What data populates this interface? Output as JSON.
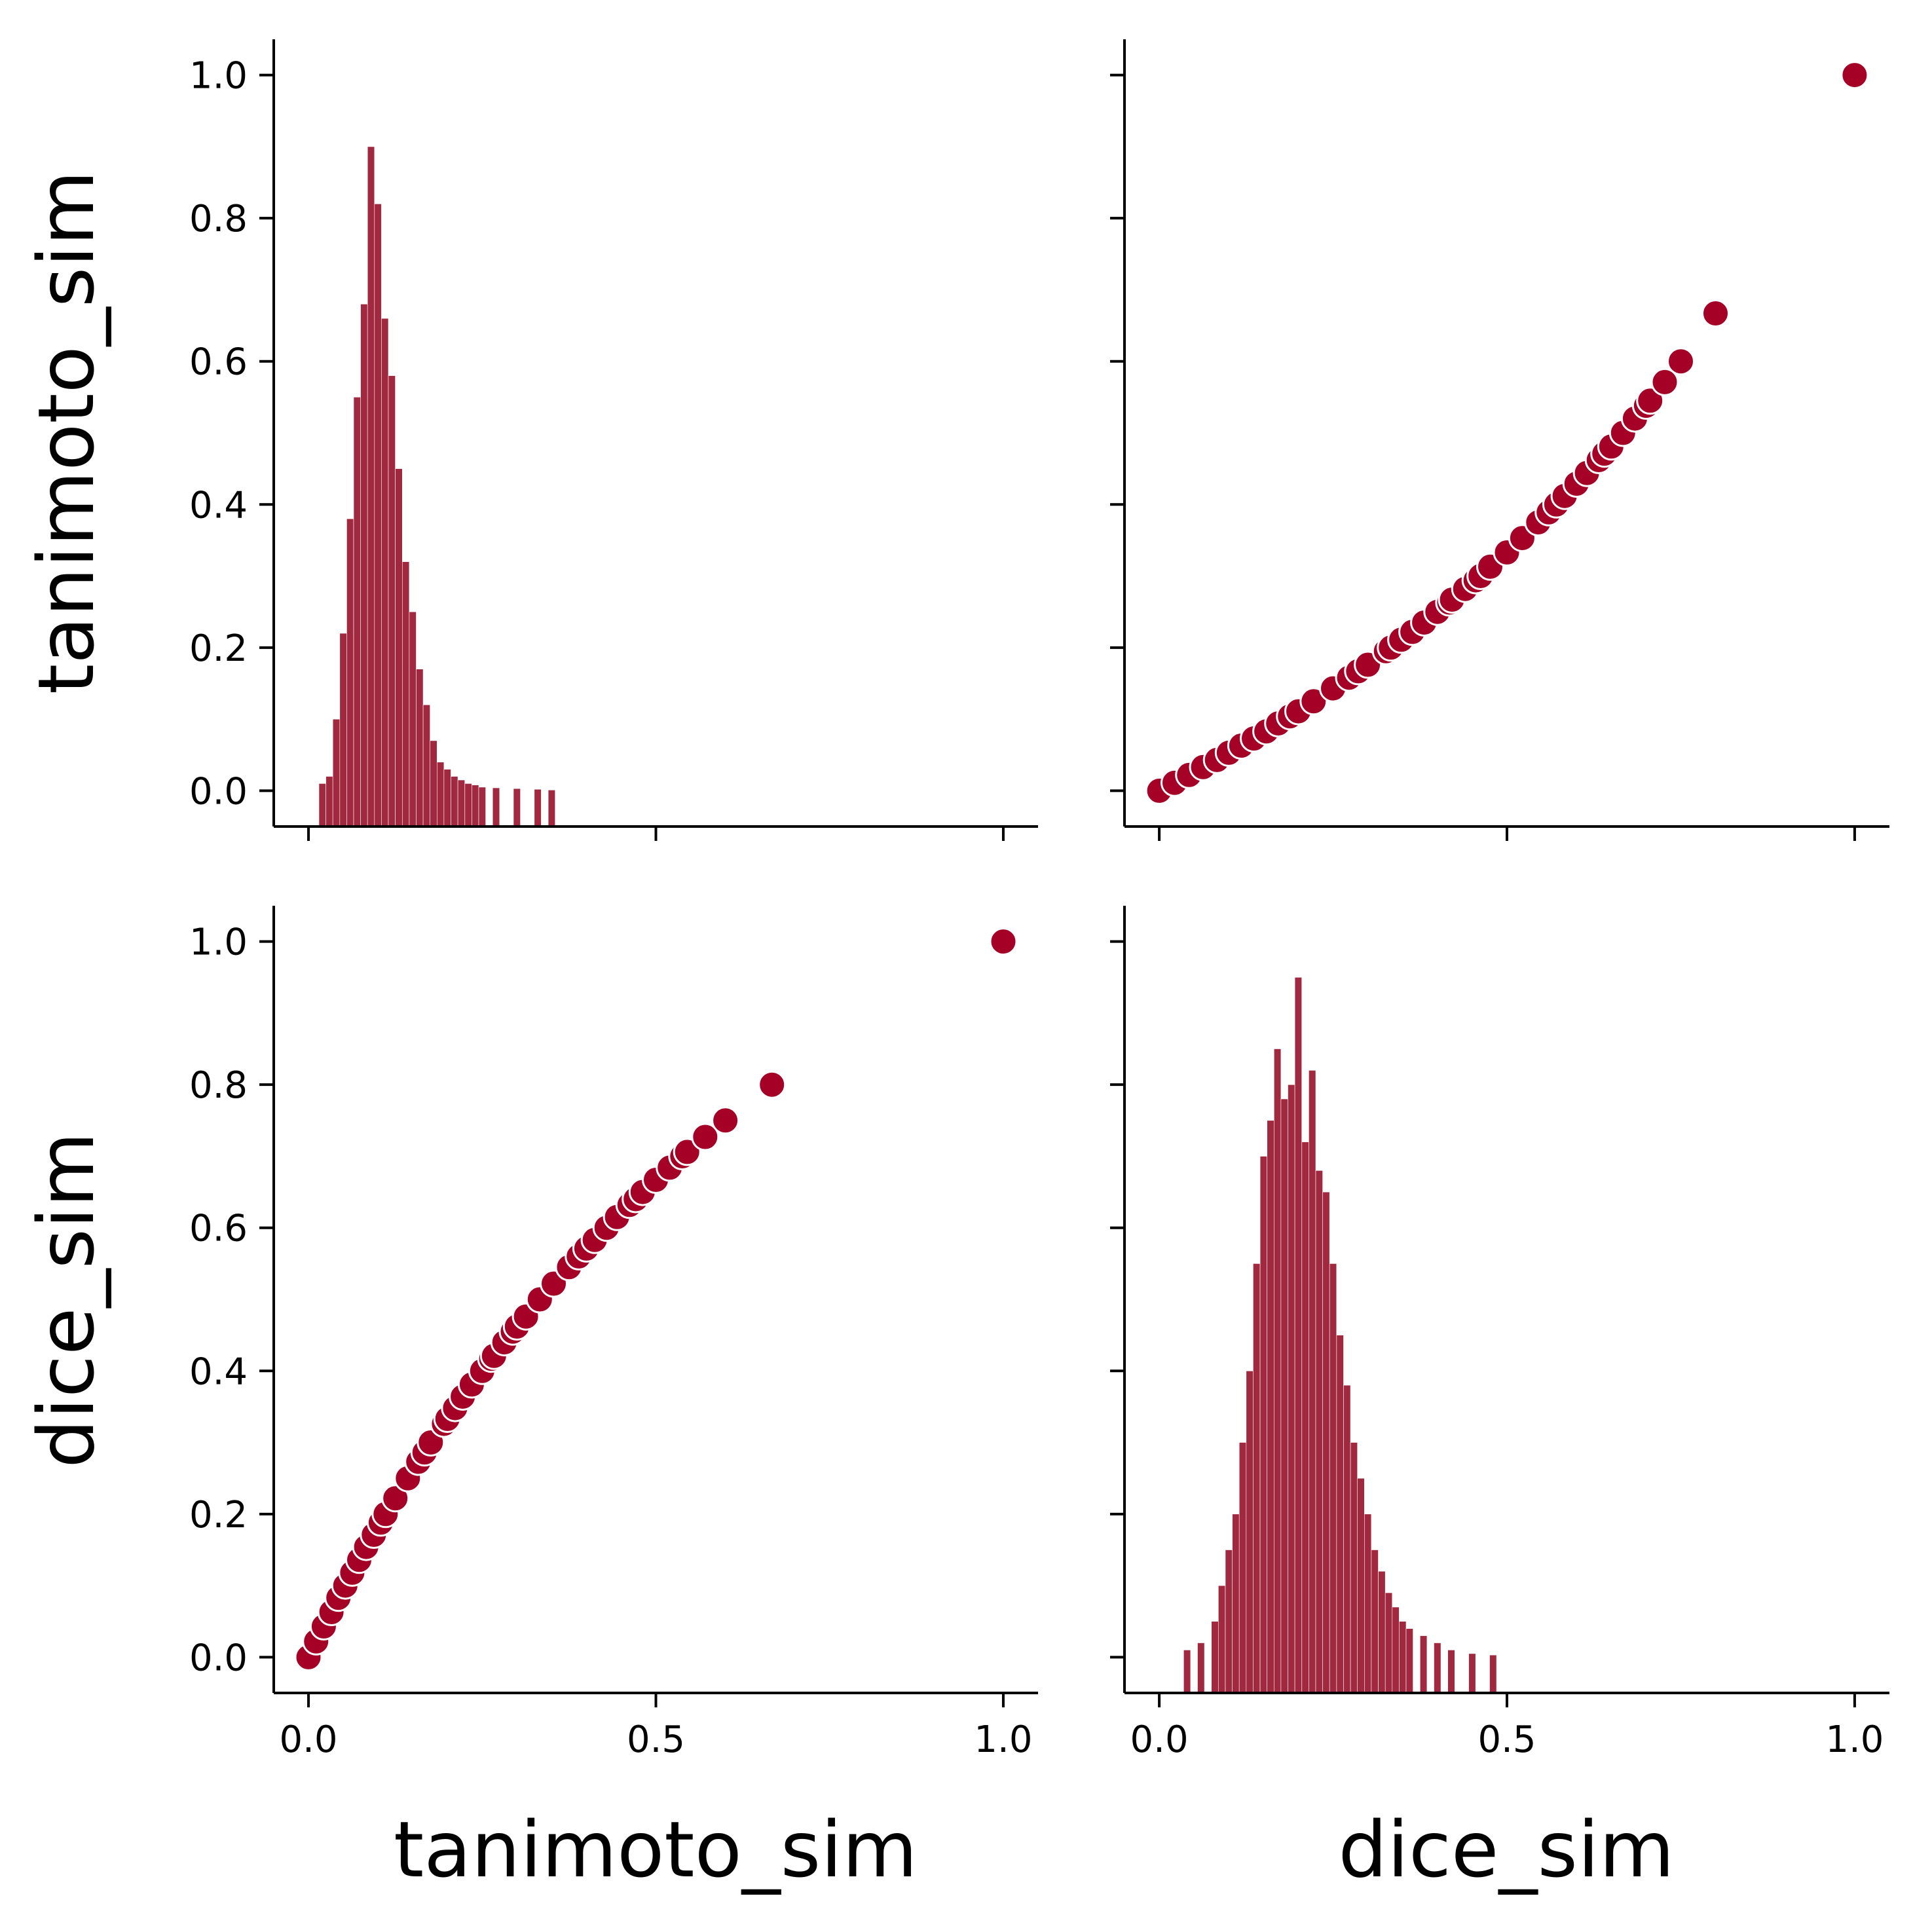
{
  "colors": {
    "mark": "#a50026",
    "hist": "#a0283f",
    "marker_edge": "#ffffff",
    "axis": "#000000"
  },
  "chart_data": {
    "type": "pairplot",
    "variables": [
      "tanimoto_sim",
      "dice_sim"
    ],
    "xlabels": [
      "tanimoto_sim",
      "dice_sim"
    ],
    "ylabels": [
      "tanimoto_sim",
      "dice_sim"
    ],
    "xlim": [
      -0.05,
      1.05
    ],
    "xticks": [
      0.0,
      0.5,
      1.0
    ],
    "xtick_labels": [
      "0.0",
      "0.5",
      "1.0"
    ],
    "ylim": [
      -0.05,
      1.05
    ],
    "yticks": [
      0.0,
      0.2,
      0.4,
      0.6,
      0.8,
      1.0
    ],
    "ytick_labels": [
      "0.0",
      "0.2",
      "0.4",
      "0.6",
      "0.8",
      "1.0"
    ],
    "panels": [
      {
        "row": 0,
        "col": 0,
        "type": "histogram",
        "variable": "tanimoto_sim",
        "note": "diagonal histogram; heights shown on the tanimoto_sim tick scale",
        "bin_centers": [
          0.02,
          0.03,
          0.04,
          0.05,
          0.06,
          0.07,
          0.08,
          0.09,
          0.1,
          0.11,
          0.12,
          0.13,
          0.14,
          0.15,
          0.16,
          0.17,
          0.18,
          0.19,
          0.2,
          0.21,
          0.22,
          0.23,
          0.24,
          0.25,
          0.27,
          0.3,
          0.33,
          0.35
        ],
        "heights": [
          0.01,
          0.02,
          0.1,
          0.22,
          0.38,
          0.55,
          0.68,
          0.9,
          0.82,
          0.66,
          0.58,
          0.45,
          0.32,
          0.25,
          0.17,
          0.12,
          0.07,
          0.04,
          0.03,
          0.02,
          0.015,
          0.01,
          0.008,
          0.005,
          0.004,
          0.003,
          0.002,
          0.001
        ]
      },
      {
        "row": 0,
        "col": 1,
        "type": "scatter",
        "x_variable": "dice_sim",
        "y_variable": "tanimoto_sim",
        "x": [
          0.0,
          0.022,
          0.043,
          0.063,
          0.083,
          0.1,
          0.118,
          0.136,
          0.154,
          0.171,
          0.188,
          0.2,
          0.222,
          0.25,
          0.273,
          0.286,
          0.3,
          0.326,
          0.333,
          0.348,
          0.364,
          0.381,
          0.4,
          0.417,
          0.421,
          0.44,
          0.455,
          0.462,
          0.476,
          0.5,
          0.522,
          0.545,
          0.56,
          0.571,
          0.583,
          0.6,
          0.615,
          0.632,
          0.64,
          0.65,
          0.667,
          0.684,
          0.7,
          0.706,
          0.727,
          0.75,
          0.8,
          1.0
        ],
        "y": [
          0.0,
          0.011,
          0.022,
          0.033,
          0.043,
          0.053,
          0.063,
          0.073,
          0.083,
          0.094,
          0.104,
          0.111,
          0.125,
          0.143,
          0.158,
          0.167,
          0.176,
          0.195,
          0.2,
          0.211,
          0.222,
          0.235,
          0.25,
          0.263,
          0.267,
          0.282,
          0.294,
          0.3,
          0.313,
          0.333,
          0.353,
          0.375,
          0.389,
          0.4,
          0.412,
          0.429,
          0.444,
          0.462,
          0.471,
          0.481,
          0.5,
          0.52,
          0.538,
          0.545,
          0.571,
          0.6,
          0.667,
          1.0
        ]
      },
      {
        "row": 1,
        "col": 0,
        "type": "scatter",
        "x_variable": "tanimoto_sim",
        "y_variable": "dice_sim",
        "x": [
          0.0,
          0.011,
          0.022,
          0.033,
          0.043,
          0.053,
          0.063,
          0.073,
          0.083,
          0.094,
          0.104,
          0.111,
          0.125,
          0.143,
          0.158,
          0.167,
          0.176,
          0.195,
          0.2,
          0.211,
          0.222,
          0.235,
          0.25,
          0.263,
          0.267,
          0.282,
          0.294,
          0.3,
          0.313,
          0.333,
          0.353,
          0.375,
          0.389,
          0.4,
          0.412,
          0.429,
          0.444,
          0.462,
          0.471,
          0.481,
          0.5,
          0.52,
          0.538,
          0.545,
          0.571,
          0.6,
          0.667,
          1.0
        ],
        "y": [
          0.0,
          0.022,
          0.043,
          0.063,
          0.083,
          0.1,
          0.118,
          0.136,
          0.154,
          0.171,
          0.188,
          0.2,
          0.222,
          0.25,
          0.273,
          0.286,
          0.3,
          0.326,
          0.333,
          0.348,
          0.364,
          0.381,
          0.4,
          0.417,
          0.421,
          0.44,
          0.455,
          0.462,
          0.476,
          0.5,
          0.522,
          0.545,
          0.56,
          0.571,
          0.583,
          0.6,
          0.615,
          0.632,
          0.64,
          0.65,
          0.667,
          0.684,
          0.7,
          0.706,
          0.727,
          0.75,
          0.8,
          1.0
        ]
      },
      {
        "row": 1,
        "col": 1,
        "type": "histogram",
        "variable": "dice_sim",
        "note": "diagonal histogram; heights shown on the dice_sim tick scale",
        "bin_centers": [
          0.04,
          0.06,
          0.08,
          0.09,
          0.1,
          0.11,
          0.12,
          0.13,
          0.14,
          0.15,
          0.16,
          0.17,
          0.18,
          0.19,
          0.2,
          0.21,
          0.22,
          0.23,
          0.24,
          0.25,
          0.26,
          0.27,
          0.28,
          0.29,
          0.3,
          0.31,
          0.32,
          0.33,
          0.34,
          0.35,
          0.36,
          0.38,
          0.4,
          0.42,
          0.45,
          0.48
        ],
        "heights": [
          0.01,
          0.02,
          0.05,
          0.1,
          0.15,
          0.2,
          0.3,
          0.4,
          0.55,
          0.7,
          0.75,
          0.85,
          0.78,
          0.8,
          0.95,
          0.72,
          0.82,
          0.68,
          0.65,
          0.55,
          0.45,
          0.38,
          0.3,
          0.25,
          0.2,
          0.15,
          0.12,
          0.09,
          0.07,
          0.05,
          0.04,
          0.03,
          0.02,
          0.01,
          0.005,
          0.003
        ]
      }
    ]
  }
}
